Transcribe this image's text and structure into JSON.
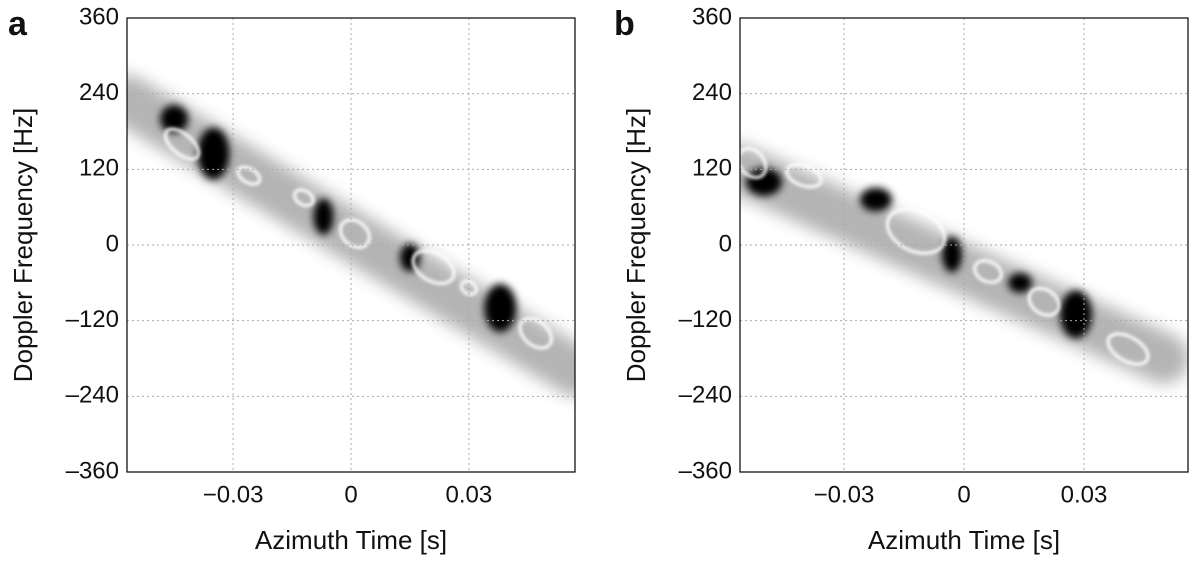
{
  "chart_data": [
    {
      "type": "heatmap",
      "panel_label": "a",
      "xlabel": "Azimuth Time [s]",
      "ylabel": "Doppler Frequency [Hz]",
      "xlim": [
        -0.057,
        0.057
      ],
      "ylim": [
        -360,
        360
      ],
      "xticks": [
        {
          "value": -0.03,
          "label": "−0.03"
        },
        0,
        {
          "value": 0.03,
          "label": "0.03"
        }
      ],
      "yticks": [
        {
          "value": -360,
          "label": "–360"
        },
        {
          "value": -240,
          "label": "–240"
        },
        {
          "value": -120,
          "label": "–120"
        },
        0,
        120,
        240,
        360
      ],
      "grid": true
    },
    {
      "type": "heatmap",
      "panel_label": "b",
      "xlabel": "Azimuth Time [s]",
      "ylabel": "Doppler Frequency [Hz]",
      "xlim": [
        -0.056,
        0.056
      ],
      "ylim": [
        -360,
        360
      ],
      "xticks": [
        {
          "value": -0.03,
          "label": "−0.03"
        },
        0,
        {
          "value": 0.03,
          "label": "0.03"
        }
      ],
      "yticks": [
        {
          "value": -360,
          "label": "–360"
        },
        {
          "value": -240,
          "label": "–240"
        },
        {
          "value": -120,
          "label": "–120"
        },
        0,
        120,
        240,
        360
      ],
      "grid": true
    }
  ]
}
